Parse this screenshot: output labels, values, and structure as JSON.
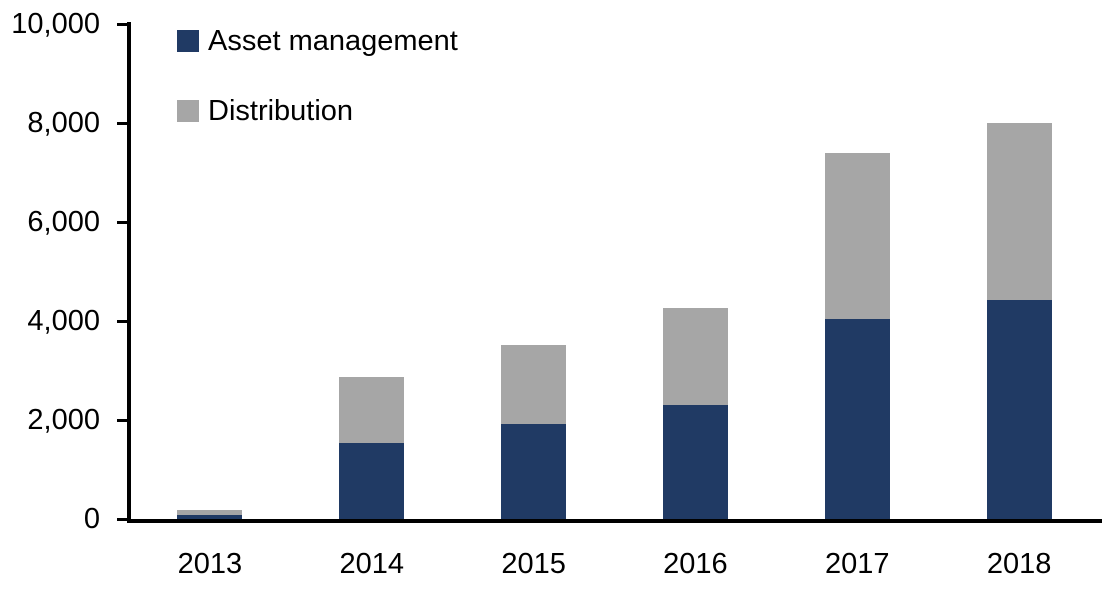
{
  "chart_data": {
    "type": "bar",
    "stacked": true,
    "title": "",
    "xlabel": "",
    "ylabel": "",
    "categories": [
      "2013",
      "2014",
      "2015",
      "2016",
      "2017",
      "2018"
    ],
    "series": [
      {
        "name": "Asset management",
        "color": "#203A64",
        "values": [
          90,
          1540,
          1910,
          2300,
          4050,
          4420
        ]
      },
      {
        "name": "Distribution",
        "color": "#A6A6A6",
        "values": [
          85,
          1330,
          1600,
          1960,
          3350,
          3580
        ]
      }
    ],
    "totals": [
      175,
      2870,
      3510,
      4260,
      7400,
      8000
    ],
    "ylim": [
      0,
      10000
    ],
    "y_ticks": [
      0,
      2000,
      4000,
      6000,
      8000,
      10000
    ],
    "y_tick_labels": [
      "0",
      "2,000",
      "4,000",
      "6,000",
      "8,000",
      "10,000"
    ],
    "grid": false,
    "legend_position": "top-left-inside",
    "axis_color": "#000000",
    "text_color": "#000000",
    "background_color": "#FFFFFF"
  }
}
